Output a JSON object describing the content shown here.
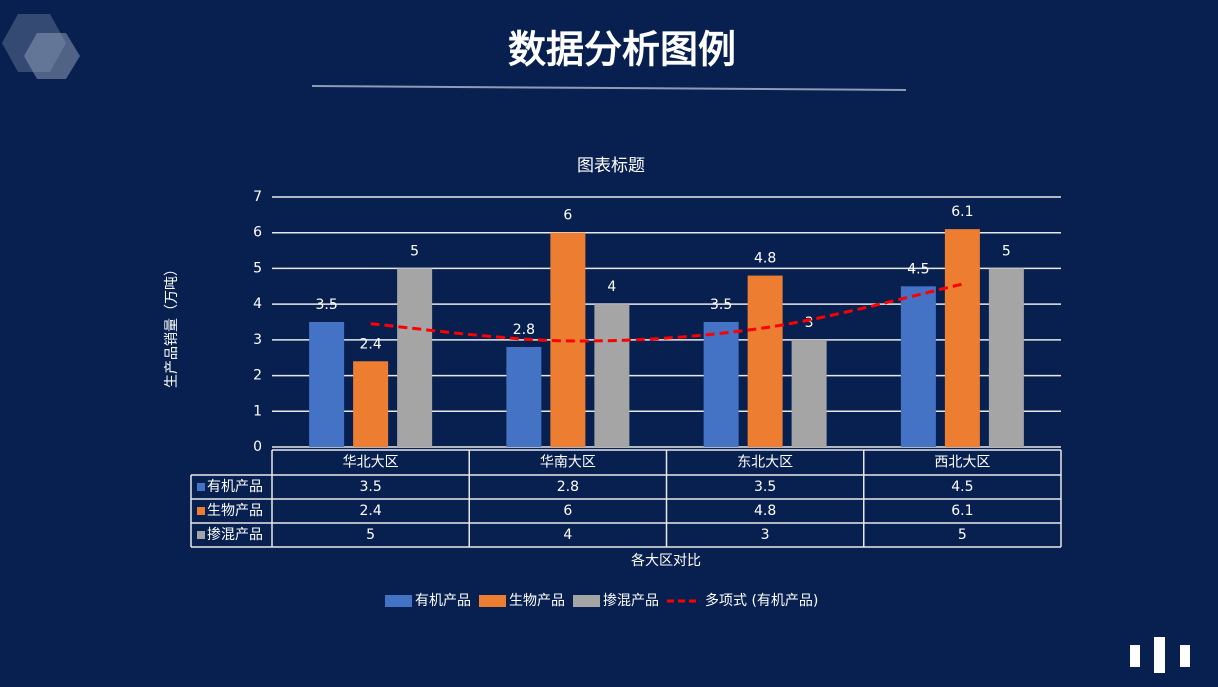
{
  "slide_title": "数据分析图例",
  "chart_data": {
    "type": "bar",
    "title": "图表标题",
    "x_label": "各大区对比",
    "y_label": "生产品销量（万吨）",
    "categories": [
      "华北大区",
      "华南大区",
      "东北大区",
      "西北大区"
    ],
    "series": [
      {
        "name": "有机产品",
        "color": "#4472c4",
        "values": [
          3.5,
          2.8,
          3.5,
          4.5
        ]
      },
      {
        "name": "生物产品",
        "color": "#ed7d31",
        "values": [
          2.4,
          6,
          4.8,
          6.1
        ]
      },
      {
        "name": "掺混产品",
        "color": "#a5a5a5",
        "values": [
          5,
          4,
          3,
          5
        ]
      }
    ],
    "trendline": {
      "name": "多项式 (有机产品)",
      "type": "polynomial",
      "color": "#ff0000",
      "values": [
        3.45,
        2.97,
        3.34,
        4.56
      ]
    },
    "ylim": [
      0,
      7
    ],
    "yticks": [
      0,
      1,
      2,
      3,
      4,
      5,
      6,
      7
    ],
    "grid": true,
    "data_labels": true,
    "data_table": true,
    "legend": "bottom"
  }
}
